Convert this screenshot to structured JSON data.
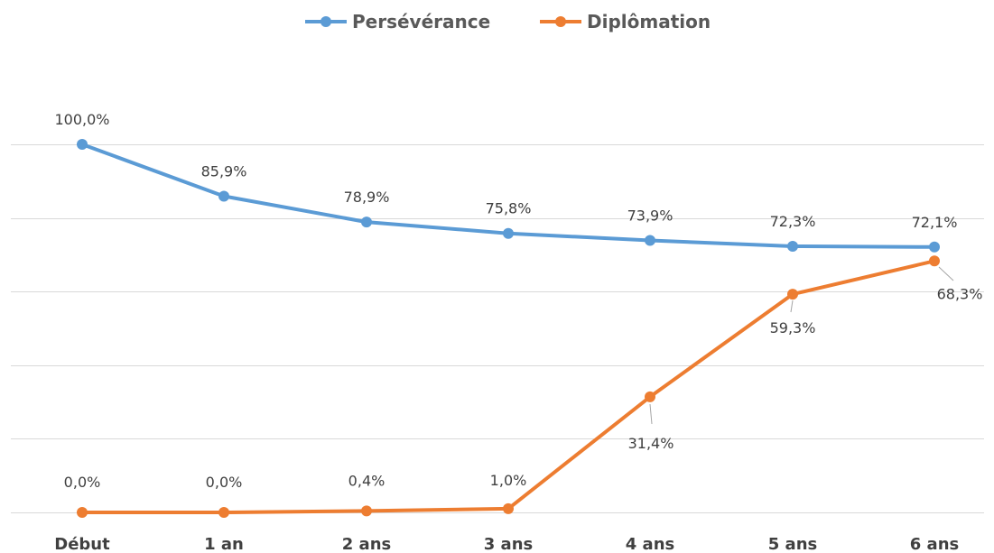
{
  "chart_data": {
    "type": "line",
    "categories": [
      "Début",
      "1 an",
      "2 ans",
      "3 ans",
      "4 ans",
      "5 ans",
      "6 ans"
    ],
    "series": [
      {
        "name": "Persévérance",
        "color": "#5b9bd5",
        "values": [
          100.0,
          85.9,
          78.9,
          75.8,
          73.9,
          72.3,
          72.1
        ],
        "labels": [
          "100,0%",
          "85,9%",
          "78,9%",
          "75,8%",
          "73,9%",
          "72,3%",
          "72,1%"
        ]
      },
      {
        "name": "Diplômation",
        "color": "#ed7d31",
        "values": [
          0.0,
          0.0,
          0.4,
          1.0,
          31.4,
          59.3,
          68.3
        ],
        "labels": [
          "0,0%",
          "0,0%",
          "0,4%",
          "1,0%",
          "31,4%",
          "59,3%",
          "68,3%"
        ]
      }
    ],
    "ylim": [
      0,
      100
    ],
    "gridlines": true,
    "legend": "top-center",
    "title": "",
    "xlabel": "",
    "ylabel": ""
  }
}
